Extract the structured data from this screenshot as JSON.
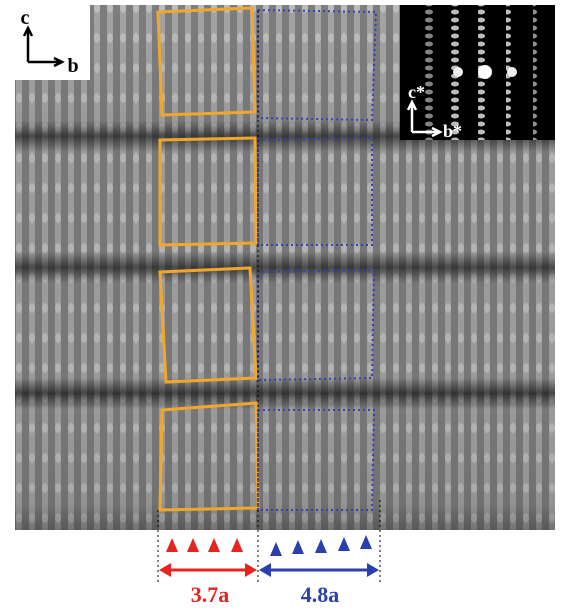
{
  "axes": {
    "vertical": "c",
    "horizontal": "b"
  },
  "inset": {
    "vertical": "c*",
    "horizontal": "b*"
  },
  "spacings": [
    {
      "label": "3.7a"
    },
    {
      "label": "4.8a"
    }
  ]
}
